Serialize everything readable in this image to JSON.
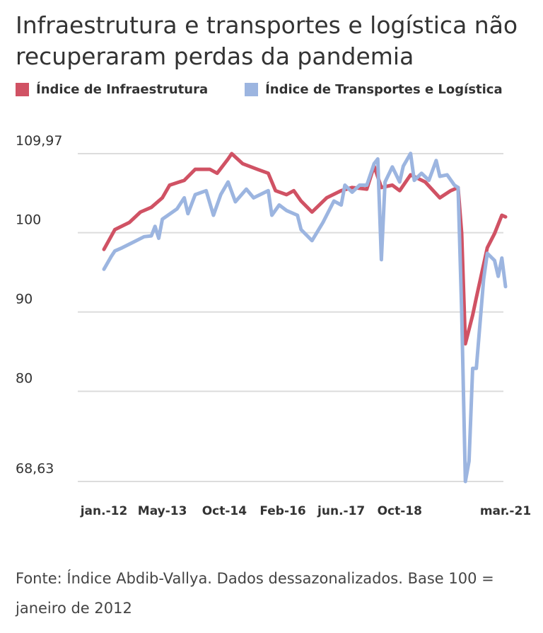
{
  "chart_data": {
    "type": "line",
    "title": "Infraestrutura e transportes e logística não recuperaram perdas da pandemia",
    "xlabel": "",
    "ylabel": "",
    "ylim": [
      68.63,
      109.97
    ],
    "y_ticks": [
      "109,97",
      "100",
      "90",
      "80",
      "68,63"
    ],
    "y_tick_values": [
      109.97,
      100,
      90,
      80,
      68.63
    ],
    "x_range": [
      "2012-01",
      "2021-03"
    ],
    "x_ticks": [
      "jan.-12",
      "May-13",
      "Oct-14",
      "Feb-16",
      "jun.-17",
      "Oct-18",
      "mar.-21"
    ],
    "x_tick_dates": [
      "2012-01",
      "2013-05",
      "2014-10",
      "2016-02",
      "2017-06",
      "2018-10",
      "2021-03"
    ],
    "grid": "horizontal",
    "legend": "top-left",
    "series": [
      {
        "name": "Índice de Infraestrutura",
        "color": "#d05264",
        "points": [
          [
            "2012-01",
            97.9
          ],
          [
            "2012-04",
            100.4
          ],
          [
            "2012-08",
            101.3
          ],
          [
            "2012-11",
            102.6
          ],
          [
            "2013-02",
            103.2
          ],
          [
            "2013-05",
            104.4
          ],
          [
            "2013-07",
            106
          ],
          [
            "2013-11",
            106.6
          ],
          [
            "2014-02",
            108
          ],
          [
            "2014-06",
            108
          ],
          [
            "2014-08",
            107.5
          ],
          [
            "2014-11",
            109.3
          ],
          [
            "2014-12",
            109.97
          ],
          [
            "2015-03",
            108.7
          ],
          [
            "2015-07",
            108
          ],
          [
            "2015-10",
            107.5
          ],
          [
            "2015-12",
            105.3
          ],
          [
            "2016-03",
            104.8
          ],
          [
            "2016-05",
            105.3
          ],
          [
            "2016-07",
            104
          ],
          [
            "2016-10",
            102.6
          ],
          [
            "2017-02",
            104.4
          ],
          [
            "2017-06",
            105.3
          ],
          [
            "2017-09",
            105.7
          ],
          [
            "2018-01",
            105.5
          ],
          [
            "2018-03",
            108.4
          ],
          [
            "2018-05",
            105.7
          ],
          [
            "2018-08",
            106
          ],
          [
            "2018-10",
            105.3
          ],
          [
            "2019-01",
            107.3
          ],
          [
            "2019-05",
            106.4
          ],
          [
            "2019-09",
            104.4
          ],
          [
            "2019-12",
            105.3
          ],
          [
            "2020-02",
            105.7
          ],
          [
            "2020-03",
            99.9
          ],
          [
            "2020-04",
            86
          ],
          [
            "2020-06",
            89.6
          ],
          [
            "2020-07",
            91.8
          ],
          [
            "2020-10",
            98.1
          ],
          [
            "2020-12",
            99.9
          ],
          [
            "2021-02",
            102.2
          ],
          [
            "2021-03",
            102
          ]
        ]
      },
      {
        "name": "Índice de Transportes e Logística",
        "color": "#9cb5e0",
        "points": [
          [
            "2012-01",
            95.4
          ],
          [
            "2012-03",
            97
          ],
          [
            "2012-04",
            97.7
          ],
          [
            "2012-06",
            98.1
          ],
          [
            "2012-09",
            98.8
          ],
          [
            "2012-12",
            99.5
          ],
          [
            "2013-02",
            99.6
          ],
          [
            "2013-03",
            100.8
          ],
          [
            "2013-04",
            99.3
          ],
          [
            "2013-05",
            101.7
          ],
          [
            "2013-09",
            103
          ],
          [
            "2013-11",
            104.4
          ],
          [
            "2013-12",
            102.4
          ],
          [
            "2014-02",
            104.8
          ],
          [
            "2014-05",
            105.3
          ],
          [
            "2014-07",
            102.2
          ],
          [
            "2014-09",
            104.8
          ],
          [
            "2014-11",
            106.4
          ],
          [
            "2015-01",
            103.9
          ],
          [
            "2015-04",
            105.5
          ],
          [
            "2015-06",
            104.4
          ],
          [
            "2015-10",
            105.3
          ],
          [
            "2015-11",
            102.2
          ],
          [
            "2016-01",
            103.5
          ],
          [
            "2016-03",
            102.8
          ],
          [
            "2016-06",
            102.2
          ],
          [
            "2016-07",
            100.4
          ],
          [
            "2016-10",
            99
          ],
          [
            "2017-01",
            101.3
          ],
          [
            "2017-04",
            104
          ],
          [
            "2017-06",
            103.5
          ],
          [
            "2017-07",
            106
          ],
          [
            "2017-09",
            105.1
          ],
          [
            "2017-11",
            106
          ],
          [
            "2018-01",
            106
          ],
          [
            "2018-03",
            108.7
          ],
          [
            "2018-04",
            109.3
          ],
          [
            "2018-05",
            96.6
          ],
          [
            "2018-06",
            106.4
          ],
          [
            "2018-08",
            108.3
          ],
          [
            "2018-10",
            106.4
          ],
          [
            "2018-11",
            108.4
          ],
          [
            "2019-01",
            110
          ],
          [
            "2019-02",
            106.6
          ],
          [
            "2019-04",
            107.5
          ],
          [
            "2019-06",
            106.6
          ],
          [
            "2019-08",
            109.1
          ],
          [
            "2019-09",
            107.1
          ],
          [
            "2019-11",
            107.3
          ],
          [
            "2020-01",
            106
          ],
          [
            "2020-02",
            105.7
          ],
          [
            "2020-03",
            90
          ],
          [
            "2020-04",
            68.63
          ],
          [
            "2020-05",
            71.2
          ],
          [
            "2020-06",
            82.9
          ],
          [
            "2020-07",
            82.9
          ],
          [
            "2020-09",
            94.1
          ],
          [
            "2020-10",
            97.4
          ],
          [
            "2020-12",
            96.5
          ],
          [
            "2021-01",
            94.5
          ],
          [
            "2021-02",
            96.8
          ],
          [
            "2021-03",
            93.2
          ]
        ]
      }
    ]
  },
  "footer": {
    "source": "Fonte: Índice Abdib-Vallya. Dados dessazonalizados. Base 100 = janeiro de 2012"
  }
}
